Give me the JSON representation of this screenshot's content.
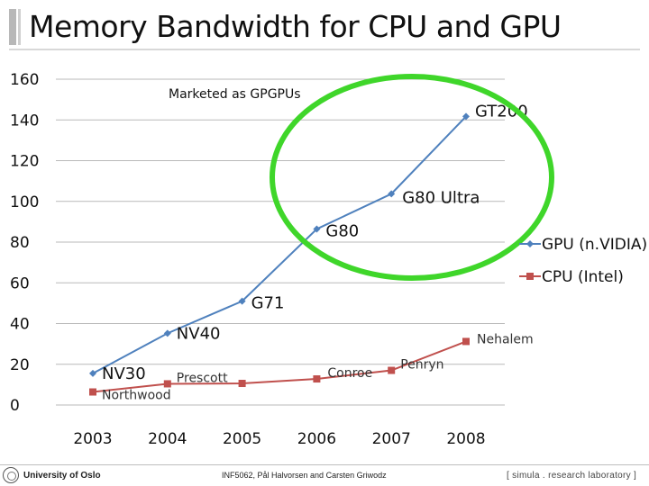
{
  "slide": {
    "title": "Memory Bandwidth for CPU and GPU"
  },
  "chart_data": {
    "type": "line",
    "title": "",
    "xlabel": "",
    "ylabel": "",
    "categories": [
      "2003",
      "2004",
      "2005",
      "2006",
      "2007",
      "2008"
    ],
    "ylim": [
      0,
      160
    ],
    "yticks": [
      0,
      20,
      40,
      60,
      80,
      100,
      120,
      140,
      160
    ],
    "grid": true,
    "legend_position": "right",
    "series": [
      {
        "name": "GPU (n.VIDIA)",
        "color": "#4f81bd",
        "marker": "diamond",
        "values": [
          15.5,
          35.2,
          51,
          86.4,
          103.7,
          141.7
        ],
        "point_labels": [
          "NV30",
          "NV40",
          "G71",
          "G80",
          "G80 Ultra",
          "GT200"
        ]
      },
      {
        "name": "CPU (Intel)",
        "color": "#c0504d",
        "marker": "square",
        "values": [
          6.4,
          10.4,
          10.6,
          12.8,
          17,
          31.2
        ],
        "point_labels": [
          "Northwood",
          "Prescott",
          "",
          "Conroe",
          "Penryn",
          "Nehalem"
        ]
      }
    ],
    "annotation": {
      "text": "Marketed as GPGPUs",
      "shape": "ellipse",
      "color": "#3fd62a"
    }
  },
  "footer": {
    "left": "University of Oslo",
    "middle": "INF5062, Pål Halvorsen and Carsten Griwodz",
    "right": "[ simula . research laboratory ]"
  }
}
